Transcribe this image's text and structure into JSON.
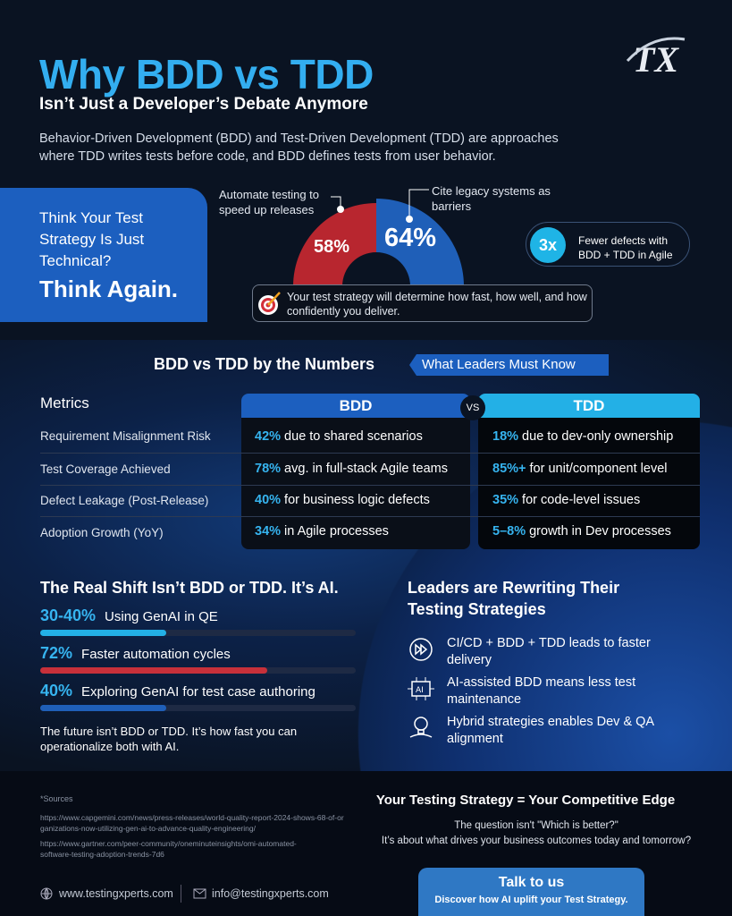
{
  "header": {
    "title": "Why BDD vs TDD",
    "subtitle": "Isn’t Just a Developer’s Debate Anymore",
    "intro": "Behavior-Driven Development (BDD) and Test-Driven Development (TDD) are approaches where TDD writes tests before code, and BDD defines tests from user behavior.",
    "logo_text": "TX"
  },
  "hero": {
    "question": "Think Your Test Strategy Is Just Technical?",
    "answer": "Think Again.",
    "stats": [
      {
        "label": "Automate testing to speed up releases",
        "value": "58%",
        "color": "#b8262f"
      },
      {
        "label": "Cite legacy systems as barriers",
        "value": "64%",
        "color": "#1f5fb8"
      }
    ],
    "badge_value": "3x",
    "badge_text": "Fewer defects with BDD + TDD in Agile",
    "callout": "Your test strategy will determine how fast, how well, and how confidently you deliver."
  },
  "numbers": {
    "title": "BDD vs TDD by the Numbers",
    "tag": "What Leaders Must Know",
    "metrics_header": "Metrics",
    "col_bdd": "BDD",
    "col_tdd": "TDD",
    "vs": "VS",
    "rows": [
      {
        "metric": "Requirement Misalignment Risk",
        "bdd_num": "42%",
        "bdd_text": " due to shared scenarios",
        "tdd_num": "18%",
        "tdd_text": " due to dev-only ownership"
      },
      {
        "metric": "Test Coverage Achieved",
        "bdd_num": "78%",
        "bdd_text": " avg. in full-stack Agile teams",
        "tdd_num": "85%+",
        "tdd_text": " for unit/component level"
      },
      {
        "metric": "Defect Leakage (Post-Release)",
        "bdd_num": "40%",
        "bdd_text": " for business logic defects",
        "tdd_num": "35%",
        "tdd_text": " for code-level issues"
      },
      {
        "metric": "Adoption Growth (YoY)",
        "bdd_num": "34%",
        "bdd_text": " in Agile processes",
        "tdd_num": "5–8%",
        "tdd_text": " growth in Dev processes"
      }
    ]
  },
  "ai": {
    "title": "The Real Shift Isn’t BDD or TDD. It’s AI.",
    "bars": [
      {
        "value": "30-40%",
        "label": "Using GenAI in QE",
        "fill": 0.4,
        "color": "#23b0e6"
      },
      {
        "value": "72%",
        "label": "Faster automation cycles",
        "fill": 0.72,
        "color": "#c7303a"
      },
      {
        "value": "40%",
        "label": "Exploring GenAI for test case authoring",
        "fill": 0.4,
        "color": "#1f5fb8"
      }
    ],
    "note": "The future isn’t BDD or TDD. It’s how fast you can operationalize both with AI."
  },
  "leaders": {
    "title": "Leaders are Rewriting Their Testing Strategies",
    "items": [
      {
        "icon": "fast-forward-icon",
        "text": "CI/CD + BDD + TDD leads to faster delivery"
      },
      {
        "icon": "ai-chip-icon",
        "text": "AI-assisted BDD means less test maintenance"
      },
      {
        "icon": "lightbulb-icon",
        "text": "Hybrid strategies enables Dev & QA alignment"
      }
    ]
  },
  "footer": {
    "sources_label": "*Sources",
    "sources": [
      "https://www.capgemini.com/news/press-releases/world-quality-report-2024-shows-68-of-organizations-now-utilizing-gen-ai-to-advance-quality-engineering/",
      "https://www.gartner.com/peer-community/oneminuteinsights/omi-automated-software-testing-adoption-trends-7d6"
    ],
    "website": "www.testingxperts.com",
    "email": "info@testingxperts.com",
    "edge_title": "Your Testing Strategy = Your Competitive Edge",
    "edge_line1": "The question isn't \"Which is better?\"",
    "edge_line2": "It’s about what drives your business outcomes today and tomorrow?",
    "cta_title": "Talk to us",
    "cta_sub": "Discover how AI uplift your Test Strategy."
  }
}
